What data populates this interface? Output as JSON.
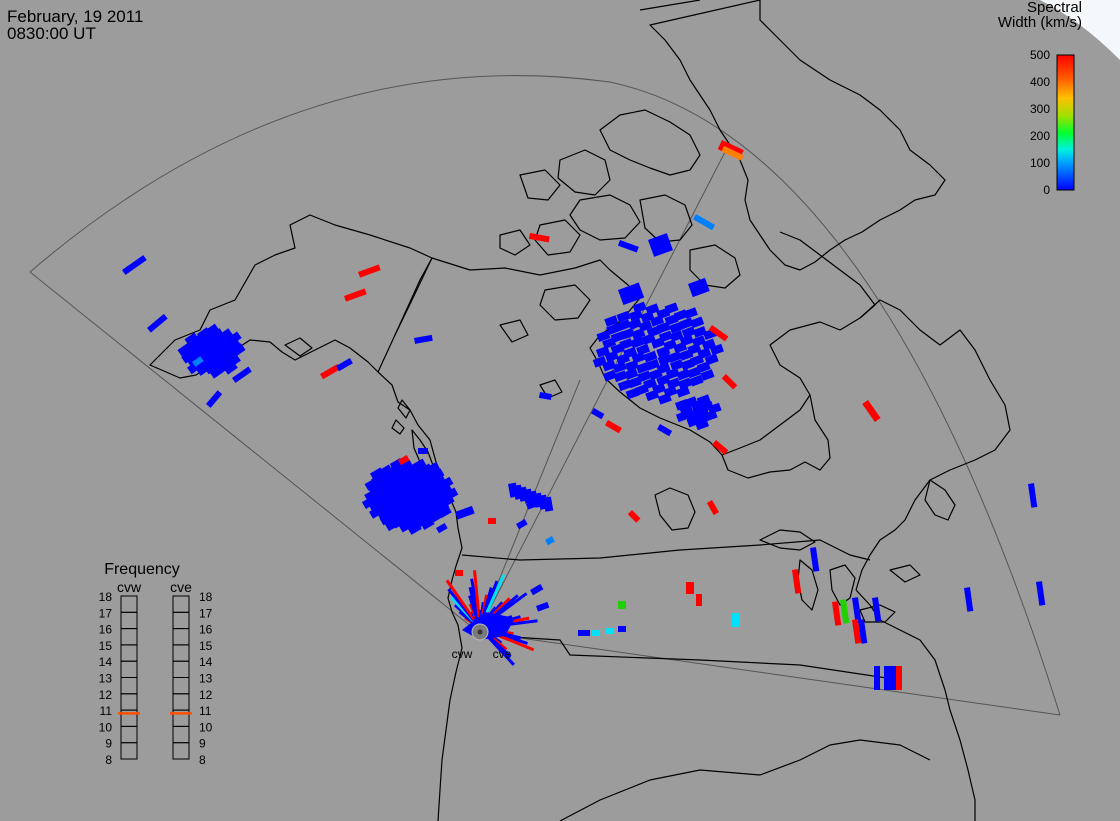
{
  "header": {
    "date": "February, 19 2011",
    "time": "0830:00 UT"
  },
  "colorbar": {
    "title_line1": "Spectral",
    "title_line2": "Width (km/s)",
    "ticks": [
      "500",
      "400",
      "300",
      "200",
      "100",
      "0"
    ],
    "colors": [
      "#0000ff",
      "#0080ff",
      "#00e0ff",
      "#00ff60",
      "#20d000",
      "#a0e000",
      "#ffd000",
      "#ff8000",
      "#ff3000",
      "#ff0000"
    ]
  },
  "radars": [
    {
      "name": "cvw",
      "frequency_mhz": 10.8
    },
    {
      "name": "cve",
      "frequency_mhz": 10.8
    }
  ],
  "frequency_panel": {
    "title": "Frequency",
    "labels": [
      "18",
      "17",
      "16",
      "15",
      "14",
      "13",
      "12",
      "11",
      "10",
      "9",
      "8"
    ],
    "range": [
      8,
      18
    ],
    "indicator_color": "#ff5000"
  },
  "colors": {
    "background": "#9c9c9c",
    "lines": "#000000",
    "fov": "#555555"
  }
}
